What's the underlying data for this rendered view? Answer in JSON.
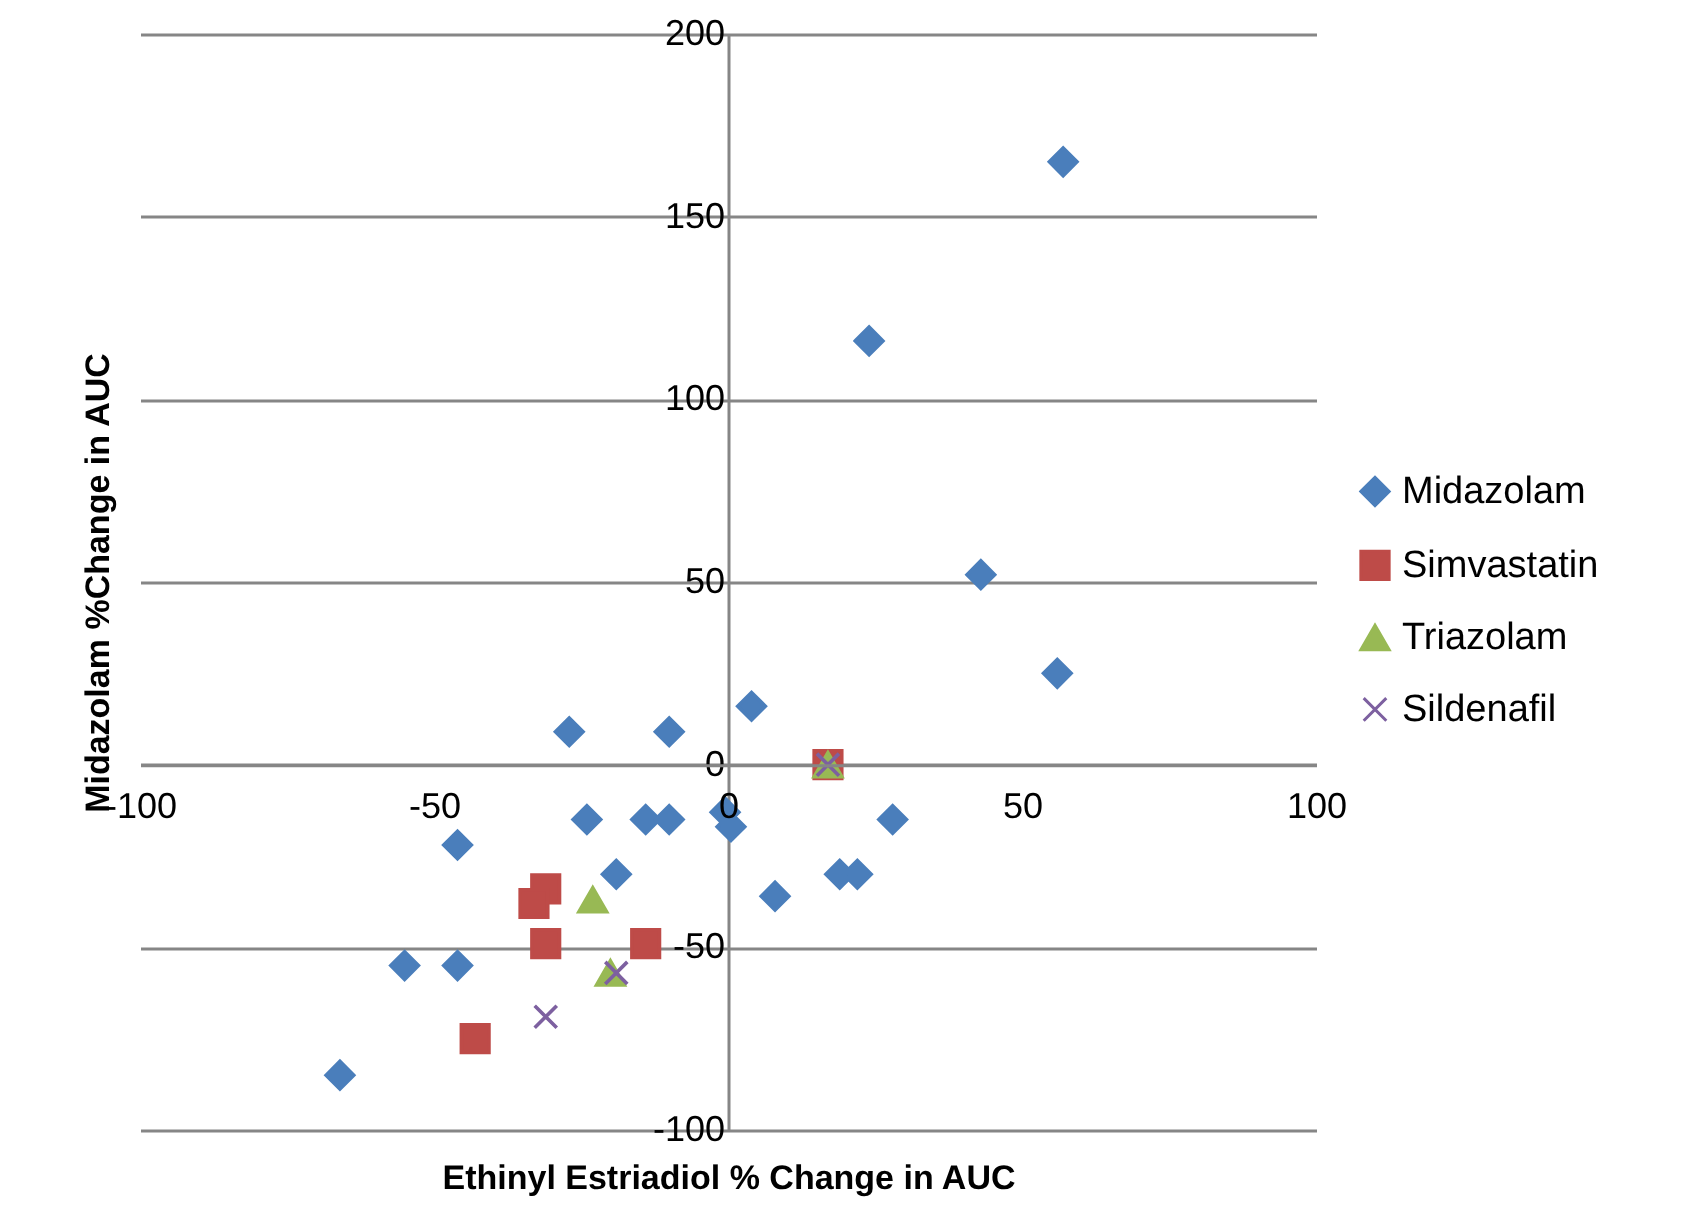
{
  "chart_data": {
    "type": "scatter",
    "xlabel": "Ethinyl Estriadiol % Change in AUC",
    "ylabel": "Midazolam %Change in AUC",
    "xlim": [
      -100,
      100
    ],
    "xticks": [
      -100,
      -50,
      0,
      50,
      100
    ],
    "ylim": [
      -100,
      200
    ],
    "yticks": [
      -100,
      -50,
      0,
      50,
      100,
      150,
      200
    ],
    "grid": "y",
    "legend": "right",
    "series": [
      {
        "name": "Midazolam",
        "color": "#4a7ebb",
        "marker": "diamond",
        "x": [
          57,
          24,
          43,
          56,
          4,
          -27,
          -10,
          -24,
          -14,
          -10,
          -0.5,
          0.5,
          28,
          -46,
          -19,
          19,
          22,
          8,
          -55,
          -46,
          -66
        ],
        "values": [
          165,
          116,
          52,
          25,
          16,
          9,
          9,
          -15,
          -15,
          -15,
          -13,
          -17,
          -15,
          -22,
          -30,
          -30,
          -30,
          -36,
          -55,
          -55,
          -85
        ]
      },
      {
        "name": "Simvastatin",
        "color": "#be4b48",
        "marker": "square",
        "x": [
          17,
          -31,
          -33,
          -31,
          -14,
          -43
        ],
        "values": [
          0,
          -34,
          -38,
          -49,
          -49,
          -75
        ]
      },
      {
        "name": "Triazolam",
        "color": "#98b954",
        "marker": "triangle",
        "x": [
          17,
          -23,
          -20
        ],
        "values": [
          0,
          -37,
          -57
        ]
      },
      {
        "name": "Sildenafil",
        "color": "#7d60a0",
        "marker": "cross",
        "x": [
          17,
          -31,
          -19
        ],
        "values": [
          0,
          -69,
          -57
        ]
      }
    ]
  }
}
